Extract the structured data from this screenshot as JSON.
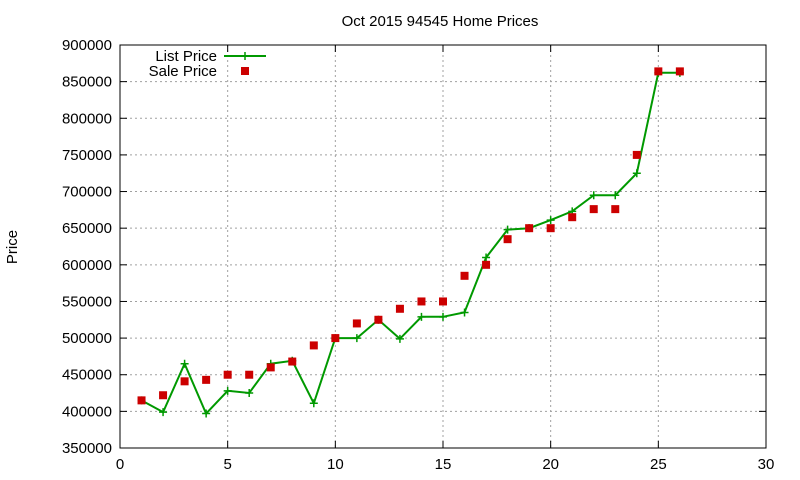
{
  "chart_data": {
    "type": "line",
    "title": "Oct 2015 94545 Home Prices",
    "xlabel": "",
    "ylabel": "Price",
    "xlim": [
      0,
      30
    ],
    "ylim": [
      350000,
      900000
    ],
    "xticks": [
      0,
      5,
      10,
      15,
      20,
      25,
      30
    ],
    "yticks": [
      350000,
      400000,
      450000,
      500000,
      550000,
      600000,
      650000,
      700000,
      750000,
      800000,
      850000,
      900000
    ],
    "grid": true,
    "legend_position": "top-left",
    "series": [
      {
        "name": "List Price",
        "style": "line+cross",
        "color": "#009900",
        "x": [
          1,
          2,
          3,
          4,
          5,
          6,
          7,
          8,
          9,
          10,
          11,
          12,
          13,
          14,
          15,
          16,
          17,
          18,
          19,
          20,
          21,
          22,
          23,
          24,
          25,
          26
        ],
        "values": [
          415000,
          399000,
          465000,
          397000,
          428000,
          425000,
          465000,
          469000,
          411000,
          500000,
          500000,
          525000,
          499000,
          529000,
          529000,
          535000,
          610000,
          648000,
          650000,
          661000,
          673000,
          695000,
          695000,
          725000,
          862000,
          862000
        ]
      },
      {
        "name": "Sale Price",
        "style": "square",
        "color": "#cc0000",
        "x": [
          1,
          2,
          3,
          4,
          5,
          6,
          7,
          8,
          9,
          10,
          11,
          12,
          13,
          14,
          15,
          16,
          17,
          18,
          19,
          20,
          21,
          22,
          23,
          24,
          25,
          26
        ],
        "values": [
          415000,
          422000,
          441000,
          443000,
          450000,
          450000,
          460000,
          468000,
          490000,
          500000,
          520000,
          525000,
          540000,
          550000,
          550000,
          585000,
          600000,
          635000,
          650000,
          650000,
          665000,
          676000,
          676000,
          750000,
          864000,
          864000
        ]
      }
    ]
  }
}
